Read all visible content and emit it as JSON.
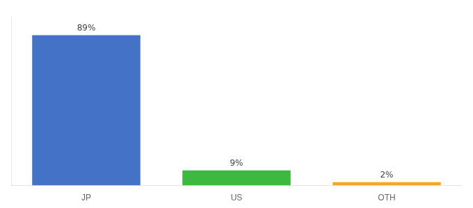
{
  "chart_data": {
    "type": "bar",
    "categories": [
      "JP",
      "US",
      "OTH"
    ],
    "values": [
      89,
      9,
      2
    ],
    "value_labels": [
      "89%",
      "9%",
      "2%"
    ],
    "colors": [
      "#4472c4",
      "#3dba3d",
      "#f5a623"
    ],
    "ylim": [
      0,
      100
    ],
    "grid": false,
    "data_labels": true,
    "tick_labels": "x"
  }
}
